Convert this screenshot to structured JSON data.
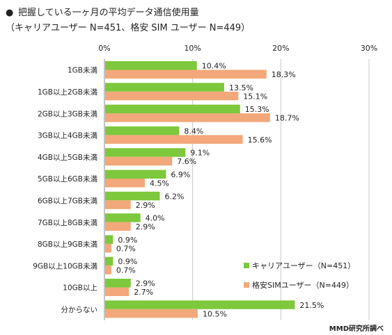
{
  "title": {
    "bullet": "●",
    "line1": "把握している一ヶ月の平均データ通信使用量",
    "line2": "（キャリアユーザー N=451、格安 SIM ユーザー N=449）"
  },
  "credit": "MMD研究所調べ",
  "chart_data": {
    "type": "bar",
    "orientation": "horizontal",
    "categories": [
      "1GB未満",
      "1GB以上2GB未満",
      "2GB以上3GB未満",
      "3GB以上4GB未満",
      "4GB以上5GB未満",
      "5GB以上6GB未満",
      "6GB以上7GB未満",
      "7GB以上8GB未満",
      "8GB以上9GB未満",
      "9GB以上10GB未満",
      "10GB以上",
      "分からない"
    ],
    "series": [
      {
        "name": "キャリアユーザー（N=451）",
        "color": "#7DC83C",
        "values": [
          10.4,
          13.5,
          15.3,
          8.4,
          9.1,
          6.9,
          6.2,
          4.0,
          0.9,
          0.9,
          2.9,
          21.5
        ],
        "labels": [
          "10.4%",
          "13.5%",
          "15.3%",
          "8.4%",
          "9.1%",
          "6.9%",
          "6.2%",
          "4.0%",
          "0.9%",
          "0.9%",
          "2.9%",
          "21.5%"
        ]
      },
      {
        "name": "格安SIMユーザー（N=449）",
        "color": "#F2A87A",
        "values": [
          18.3,
          15.1,
          18.7,
          15.6,
          7.6,
          4.5,
          2.9,
          2.9,
          0.7,
          0.7,
          2.7,
          10.5
        ],
        "labels": [
          "18.3%",
          "15.1%",
          "18.7%",
          "15.6%",
          "7.6%",
          "4.5%",
          "2.9%",
          "2.9%",
          "0.7%",
          "0.7%",
          "2.7%",
          "10.5%"
        ]
      }
    ],
    "xlim": [
      0,
      30
    ],
    "xticks": [
      0,
      10,
      20,
      30
    ],
    "xtick_labels": [
      "0%",
      "10%",
      "20%",
      "30%"
    ],
    "grid": true,
    "legend_position": "bottom-right"
  }
}
